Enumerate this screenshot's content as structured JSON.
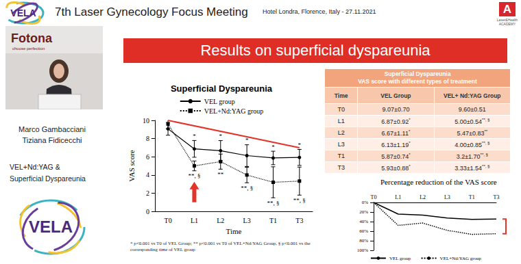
{
  "header": {
    "title": "7th Laser Gynecology Focus Meeting",
    "venue": "Hotel Londra, Florence, Italy - 27.11.2021",
    "logo_text": "VELA",
    "academy_logo": "A",
    "academy_text": "Laser&Health ACADEMY"
  },
  "speaker_panel": {
    "backdrop_brand": "Fotona",
    "backdrop_slogan": "choose perfection",
    "authors": [
      "Marco Gambacciani",
      "Tiziana Fidicecchi"
    ],
    "topic": [
      "VEL+Nd:YAG &",
      "Superficial Dyspareunia"
    ],
    "logo_text": "VELA"
  },
  "slide": {
    "title": "Results on superficial dyspareunia",
    "footnote": [
      "* p<0.001 vs T0 of VEL Group; ** p<0.001 vs T0 of VEL+Nd:YAG Group, § p<0.001 vs the",
      "corresponding time of VEL group"
    ],
    "table": {
      "title": [
        "Superficial Dyspareunia",
        "VAS score with different types of treatment"
      ],
      "columns": [
        "Time",
        "VEL Group",
        "VEL+ Nd:YAG Group"
      ],
      "rows": [
        [
          "T0",
          "9.07±0.70",
          "9.60±0.51"
        ],
        [
          "L1",
          "6.87±0.92*",
          "5.00±0.54**, §"
        ],
        [
          "L2",
          "6.67±1.11*",
          "5.47±0.83**"
        ],
        [
          "L3",
          "6.13±1.19*",
          "4.00±0.85**, §"
        ],
        [
          "T1",
          "5.87±0.74*",
          "3.2±1.70**, §"
        ],
        [
          "T3",
          "5.93±0.88*",
          "3.33±1.54**, §"
        ]
      ]
    }
  },
  "chart_data": [
    {
      "type": "line",
      "title": "Superficial Dyspareunia",
      "x_label": "Time",
      "y_label": "VAS score",
      "categories": [
        "T0",
        "L1",
        "L2",
        "L3",
        "T1",
        "T3"
      ],
      "ylim": [
        0,
        10
      ],
      "yticks": [
        0,
        2,
        4,
        6,
        8,
        10
      ],
      "grid": false,
      "legend": "top",
      "series": [
        {
          "name": "VEL group",
          "color": "#000000",
          "marker": "circle",
          "line_style": "solid",
          "values": [
            9.07,
            6.87,
            6.67,
            6.13,
            5.87,
            5.93
          ],
          "error": [
            0.7,
            0.92,
            1.11,
            1.19,
            0.74,
            0.88
          ],
          "annotations_above": [
            null,
            "*",
            "*",
            "*",
            "*",
            "*"
          ]
        },
        {
          "name": "VEL+Nd:YAG group",
          "color": "#000000",
          "marker": "square",
          "line_style": "dotted",
          "values": [
            9.6,
            5.0,
            5.47,
            4.0,
            3.2,
            3.33
          ],
          "error": [
            0.51,
            0.54,
            0.83,
            0.85,
            1.7,
            1.54
          ],
          "annotations_below": [
            null,
            "**, §",
            "**",
            "**, §",
            "**, §",
            "**, §"
          ]
        }
      ],
      "trend_line": {
        "color": "#e3342a",
        "values": [
          10,
          null,
          null,
          null,
          null,
          7
        ]
      }
    },
    {
      "type": "line",
      "title": "Percentage reduction of the VAS score",
      "categories": [
        "T0",
        "L1",
        "L2",
        "L3",
        "T1",
        "T3"
      ],
      "ylim": [
        100,
        0
      ],
      "yticks": [
        {
          "value": 0,
          "label": "0%"
        },
        {
          "value": 20,
          "label": "20%"
        },
        {
          "value": 40,
          "label": "40%"
        },
        {
          "value": 60,
          "label": "60%"
        },
        {
          "value": 80,
          "label": "80%"
        },
        {
          "value": 100,
          "label": "100%"
        }
      ],
      "grid": false,
      "legend": "bottom",
      "series": [
        {
          "name": "VEL group",
          "color": "#000000",
          "marker": "none",
          "line_style": "solid",
          "values": [
            0,
            24.3,
            26.5,
            32.4,
            35.3,
            34.6
          ]
        },
        {
          "name": "VEL+Nd:YAG group",
          "color": "#000000",
          "marker": "none",
          "line_style": "dotted",
          "values": [
            0,
            47.9,
            43.0,
            58.3,
            66.7,
            65.3
          ]
        }
      ]
    }
  ]
}
